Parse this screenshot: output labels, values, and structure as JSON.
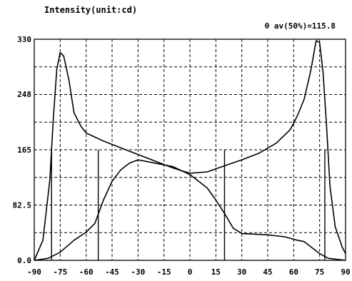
{
  "chart_data": {
    "type": "line",
    "title": "Intensity(unit:cd)",
    "annotation": "θ av(50%)=115.8",
    "xlim": [
      -90,
      90
    ],
    "ylim": [
      0,
      330
    ],
    "x_ticks": [
      -90,
      -75,
      -60,
      -45,
      -30,
      -15,
      0,
      15,
      30,
      45,
      60,
      75,
      90
    ],
    "y_ticks": [
      0,
      82.5,
      165,
      248,
      330
    ],
    "x_tick_labels": [
      "-90",
      "-75",
      "-60",
      "-45",
      "-30",
      "-15",
      "0",
      "15",
      "30",
      "45",
      "60",
      "75",
      "90"
    ],
    "y_tick_labels": [
      "0.0",
      "82.5",
      "165",
      "248",
      "330"
    ],
    "grid": true,
    "series": [
      {
        "points": [
          [
            -90,
            0
          ],
          [
            -85,
            30
          ],
          [
            -81,
            120
          ],
          [
            -79,
            210
          ],
          [
            -77,
            285
          ],
          [
            -75,
            310
          ],
          [
            -73,
            305
          ],
          [
            -70,
            270
          ],
          [
            -67,
            220
          ],
          [
            -63,
            200
          ],
          [
            -60,
            190
          ],
          [
            -50,
            178
          ],
          [
            -40,
            168
          ],
          [
            -30,
            158
          ],
          [
            -20,
            148
          ],
          [
            -10,
            138
          ],
          [
            0,
            130
          ],
          [
            10,
            132
          ],
          [
            20,
            141
          ],
          [
            30,
            150
          ],
          [
            40,
            160
          ],
          [
            50,
            175
          ],
          [
            58,
            195
          ],
          [
            62,
            215
          ],
          [
            66,
            240
          ],
          [
            70,
            285
          ],
          [
            73,
            328
          ],
          [
            75,
            325
          ],
          [
            77,
            280
          ],
          [
            79,
            200
          ],
          [
            81,
            110
          ],
          [
            84,
            50
          ],
          [
            88,
            20
          ],
          [
            90,
            10
          ]
        ]
      },
      {
        "points": [
          [
            -90,
            0
          ],
          [
            -82,
            3
          ],
          [
            -75,
            12
          ],
          [
            -67,
            30
          ],
          [
            -60,
            42
          ],
          [
            -55,
            55
          ],
          [
            -50,
            90
          ],
          [
            -45,
            118
          ],
          [
            -40,
            135
          ],
          [
            -35,
            145
          ],
          [
            -30,
            150
          ],
          [
            -20,
            145
          ],
          [
            -10,
            140
          ],
          [
            0,
            128
          ],
          [
            10,
            108
          ],
          [
            15,
            90
          ],
          [
            20,
            70
          ],
          [
            25,
            48
          ],
          [
            30,
            40
          ],
          [
            45,
            38
          ],
          [
            55,
            35
          ],
          [
            62,
            30
          ],
          [
            66,
            28
          ],
          [
            70,
            20
          ],
          [
            75,
            10
          ],
          [
            80,
            3
          ],
          [
            90,
            0
          ]
        ]
      }
    ],
    "vertical_markers": [
      -80,
      -53,
      20,
      78
    ]
  }
}
